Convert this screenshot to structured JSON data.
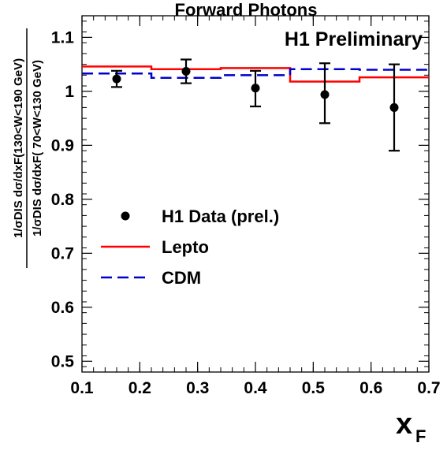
{
  "chart_data": {
    "type": "scatter",
    "title": "Forward Photons",
    "annotation": "H1 Preliminary",
    "xlabel": "x",
    "xlabel_sub": "F",
    "ylabel_top": "1/σDIS dσ/dxF(130<W<190 GeV)",
    "ylabel_bottom": "1/σDIS dσ/dxF( 70<W<130 GeV)",
    "xlim": [
      0.1,
      0.7
    ],
    "ylim": [
      0.48,
      1.14
    ],
    "x_ticks": [
      0.1,
      0.2,
      0.3,
      0.4,
      0.5,
      0.6,
      0.7
    ],
    "x_tick_labels": [
      "0.1",
      "0.2",
      "0.3",
      "0.4",
      "0.5",
      "0.6",
      "0.7"
    ],
    "y_ticks": [
      0.5,
      0.6,
      0.7,
      0.8,
      0.9,
      1.0,
      1.1
    ],
    "y_tick_labels": [
      "0.5",
      "0.6",
      "0.7",
      "0.8",
      "0.9",
      "1",
      "1.1"
    ],
    "grid": false,
    "legend_position": "center-left",
    "series": [
      {
        "name": "H1 Data (prel.)",
        "kind": "points",
        "color": "#000000",
        "x": [
          0.16,
          0.28,
          0.4,
          0.52,
          0.64
        ],
        "y": [
          1.023,
          1.037,
          1.006,
          0.994,
          0.97
        ],
        "err_up": [
          0.015,
          0.022,
          0.032,
          0.058,
          0.08
        ],
        "err_down": [
          0.015,
          0.022,
          0.034,
          0.053,
          0.08
        ]
      },
      {
        "name": "Lepto",
        "kind": "histogram",
        "color": "#ff0000",
        "bin_edges": [
          0.1,
          0.22,
          0.34,
          0.46,
          0.58,
          0.7
        ],
        "values": [
          1.046,
          1.041,
          1.043,
          1.018,
          1.026
        ]
      },
      {
        "name": "CDM",
        "kind": "histogram",
        "color": "#0000cc",
        "bin_edges": [
          0.1,
          0.22,
          0.34,
          0.46,
          0.58,
          0.7
        ],
        "values": [
          1.033,
          1.025,
          1.03,
          1.041,
          1.04
        ]
      }
    ]
  }
}
